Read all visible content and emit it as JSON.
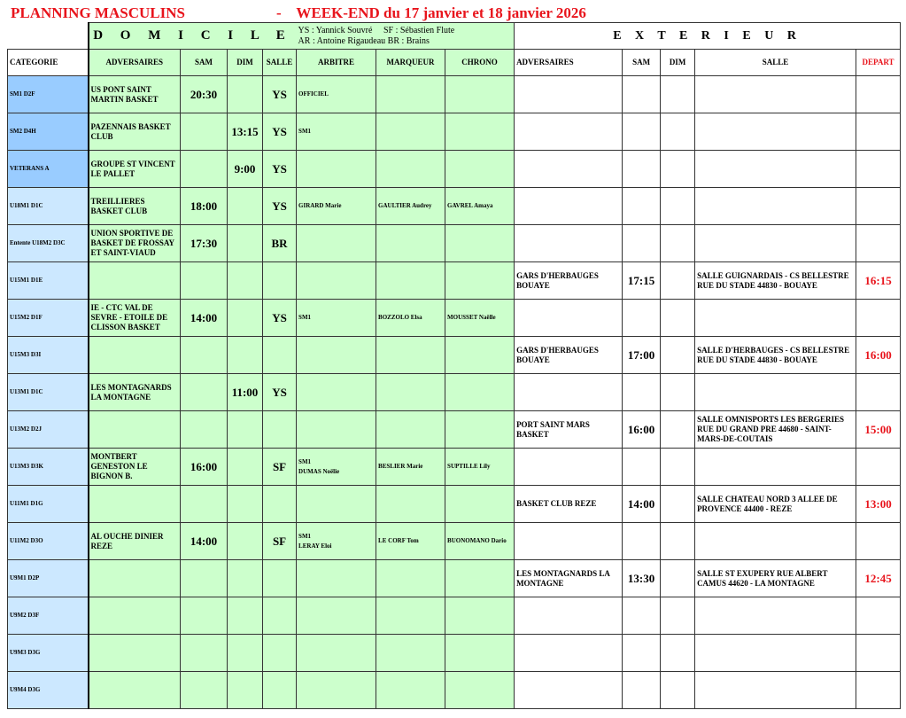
{
  "title": "PLANNING MASCULINS",
  "subtitle": "-    WEEK-END du 17 janvier et 18 janvier 2026",
  "home": {
    "label": "D O M I C I L E",
    "legend_line1": "YS : Yannick Souvré     SF : Sébastien Flute",
    "legend_line2": "AR : Antoine Rigaudeau BR : Brains"
  },
  "away": {
    "label": "E X T E R I E U R"
  },
  "columns": {
    "categorie": "CATEGORIE",
    "adversaires": "ADVERSAIRES",
    "sam": "SAM",
    "dim": "DIM",
    "salle": "SALLE",
    "arbitre": "ARBITRE",
    "marqueur": "MARQUEUR",
    "chrono": "CHRONO",
    "ext_adversaires": "ADVERSAIRES",
    "ext_sam": "SAM",
    "ext_dim": "DIM",
    "ext_salle": "SALLE",
    "depart": "DEPART"
  },
  "colors": {
    "title": "#e8141c",
    "home_bg": "#ccffcc",
    "senior_cat_bg": "#99ccff",
    "youth_cat_bg": "#cce8ff"
  },
  "rows": [
    {
      "cat": "SM1 D2F",
      "senior": true,
      "adv": "US PONT SAINT MARTIN BASKET",
      "sam": "20:30",
      "dim": "",
      "salle": "YS",
      "arbitre": "OFFICIEL",
      "marqueur": "",
      "chrono": "",
      "ext_adv": "",
      "ext_sam": "",
      "ext_dim": "",
      "ext_salle": "",
      "depart": ""
    },
    {
      "cat": "SM2 D4H",
      "senior": true,
      "adv": "PAZENNAIS BASKET CLUB",
      "sam": "",
      "dim": "13:15",
      "salle": "YS",
      "arbitre": "SM1",
      "marqueur": "",
      "chrono": "",
      "ext_adv": "",
      "ext_sam": "",
      "ext_dim": "",
      "ext_salle": "",
      "depart": ""
    },
    {
      "cat": "VETERANS A",
      "senior": true,
      "adv": "GROUPE ST VINCENT LE PALLET",
      "sam": "",
      "dim": "9:00",
      "salle": "YS",
      "arbitre": "",
      "marqueur": "",
      "chrono": "",
      "ext_adv": "",
      "ext_sam": "",
      "ext_dim": "",
      "ext_salle": "",
      "depart": ""
    },
    {
      "cat": "U18M1 D1C",
      "senior": false,
      "adv": "TREILLIERES BASKET CLUB",
      "sam": "18:00",
      "dim": "",
      "salle": "YS",
      "arbitre": "GIRARD Marie",
      "marqueur": "GAULTIER Audrey",
      "chrono": "GAVREL Amaya",
      "ext_adv": "",
      "ext_sam": "",
      "ext_dim": "",
      "ext_salle": "",
      "depart": ""
    },
    {
      "cat": "Entente U18M2 D3C",
      "senior": false,
      "adv": "UNION SPORTIVE DE BASKET DE FROSSAY ET SAINT-VIAUD",
      "sam": "17:30",
      "dim": "",
      "salle": "BR",
      "arbitre": "",
      "marqueur": "",
      "chrono": "",
      "ext_adv": "",
      "ext_sam": "",
      "ext_dim": "",
      "ext_salle": "",
      "depart": ""
    },
    {
      "cat": "U15M1 D1E",
      "senior": false,
      "adv": "",
      "sam": "",
      "dim": "",
      "salle": "",
      "arbitre": "",
      "marqueur": "",
      "chrono": "",
      "ext_adv": "GARS D'HERBAUGES BOUAYE",
      "ext_sam": "17:15",
      "ext_dim": "",
      "ext_salle": "SALLE GUIGNARDAIS - CS BELLESTRE RUE DU STADE 44830 - BOUAYE",
      "depart": "16:15"
    },
    {
      "cat": "U15M2 D1F",
      "senior": false,
      "adv": "IE - CTC VAL DE SEVRE - ETOILE DE CLISSON BASKET",
      "sam": "14:00",
      "dim": "",
      "salle": "YS",
      "arbitre": "SM1",
      "marqueur": "BOZZOLO Elsa",
      "chrono": "MOUSSET Naëlle",
      "ext_adv": "",
      "ext_sam": "",
      "ext_dim": "",
      "ext_salle": "",
      "depart": ""
    },
    {
      "cat": "U15M3 D3I",
      "senior": false,
      "adv": "",
      "sam": "",
      "dim": "",
      "salle": "",
      "arbitre": "",
      "marqueur": "",
      "chrono": "",
      "ext_adv": "GARS D'HERBAUGES BOUAYE",
      "ext_sam": "17:00",
      "ext_dim": "",
      "ext_salle": "SALLE D'HERBAUGES - CS BELLESTRE RUE DU STADE 44830 - BOUAYE",
      "depart": "16:00"
    },
    {
      "cat": "U13M1 D1C",
      "senior": false,
      "adv": "LES MONTAGNARDS LA MONTAGNE",
      "sam": "",
      "dim": "11:00",
      "salle": "YS",
      "arbitre": "",
      "marqueur": "",
      "chrono": "",
      "ext_adv": "",
      "ext_sam": "",
      "ext_dim": "",
      "ext_salle": "",
      "depart": ""
    },
    {
      "cat": "U13M2 D2J",
      "senior": false,
      "adv": "",
      "sam": "",
      "dim": "",
      "salle": "",
      "arbitre": "",
      "marqueur": "",
      "chrono": "",
      "ext_adv": "PORT SAINT MARS BASKET",
      "ext_sam": "16:00",
      "ext_dim": "",
      "ext_salle": "SALLE OMNISPORTS LES BERGERIES RUE DU GRAND PRE 44680 - SAINT-MARS-DE-COUTAIS",
      "depart": "15:00"
    },
    {
      "cat": "U13M3 D3K",
      "senior": false,
      "adv": "MONTBERT GENESTON LE BIGNON B.",
      "sam": "16:00",
      "dim": "",
      "salle": "SF",
      "arbitre": "SM1\nDUMAS Noëlie",
      "marqueur": "BESLIER Marie",
      "chrono": "SUPTILLE Lily",
      "ext_adv": "",
      "ext_sam": "",
      "ext_dim": "",
      "ext_salle": "",
      "depart": ""
    },
    {
      "cat": "U11M1 D1G",
      "senior": false,
      "adv": "",
      "sam": "",
      "dim": "",
      "salle": "",
      "arbitre": "",
      "marqueur": "",
      "chrono": "",
      "ext_adv": "BASKET CLUB REZE",
      "ext_sam": "14:00",
      "ext_dim": "",
      "ext_salle": "SALLE CHATEAU NORD 3 ALLEE DE PROVENCE 44400 - REZE",
      "depart": "13:00"
    },
    {
      "cat": "U11M2 D3O",
      "senior": false,
      "adv": "AL OUCHE DINIER REZE",
      "sam": "14:00",
      "dim": "",
      "salle": "SF",
      "arbitre": "SM1\nLERAY Eloi",
      "marqueur": "LE CORF Tom",
      "chrono": "BUONOMANO Dario",
      "ext_adv": "",
      "ext_sam": "",
      "ext_dim": "",
      "ext_salle": "",
      "depart": ""
    },
    {
      "cat": "U9M1 D2P",
      "senior": false,
      "adv": "",
      "sam": "",
      "dim": "",
      "salle": "",
      "arbitre": "",
      "marqueur": "",
      "chrono": "",
      "ext_adv": "LES MONTAGNARDS LA MONTAGNE",
      "ext_sam": "13:30",
      "ext_dim": "",
      "ext_salle": "SALLE ST EXUPERY RUE ALBERT CAMUS 44620 - LA MONTAGNE",
      "depart": "12:45"
    },
    {
      "cat": "U9M2 D3F",
      "senior": false,
      "adv": "",
      "sam": "",
      "dim": "",
      "salle": "",
      "arbitre": "",
      "marqueur": "",
      "chrono": "",
      "ext_adv": "",
      "ext_sam": "",
      "ext_dim": "",
      "ext_salle": "",
      "depart": ""
    },
    {
      "cat": "U9M3 D3G",
      "senior": false,
      "adv": "",
      "sam": "",
      "dim": "",
      "salle": "",
      "arbitre": "",
      "marqueur": "",
      "chrono": "",
      "ext_adv": "",
      "ext_sam": "",
      "ext_dim": "",
      "ext_salle": "",
      "depart": ""
    },
    {
      "cat": "U9M4 D3G",
      "senior": false,
      "adv": "",
      "sam": "",
      "dim": "",
      "salle": "",
      "arbitre": "",
      "marqueur": "",
      "chrono": "",
      "ext_adv": "",
      "ext_sam": "",
      "ext_dim": "",
      "ext_salle": "",
      "depart": ""
    }
  ]
}
